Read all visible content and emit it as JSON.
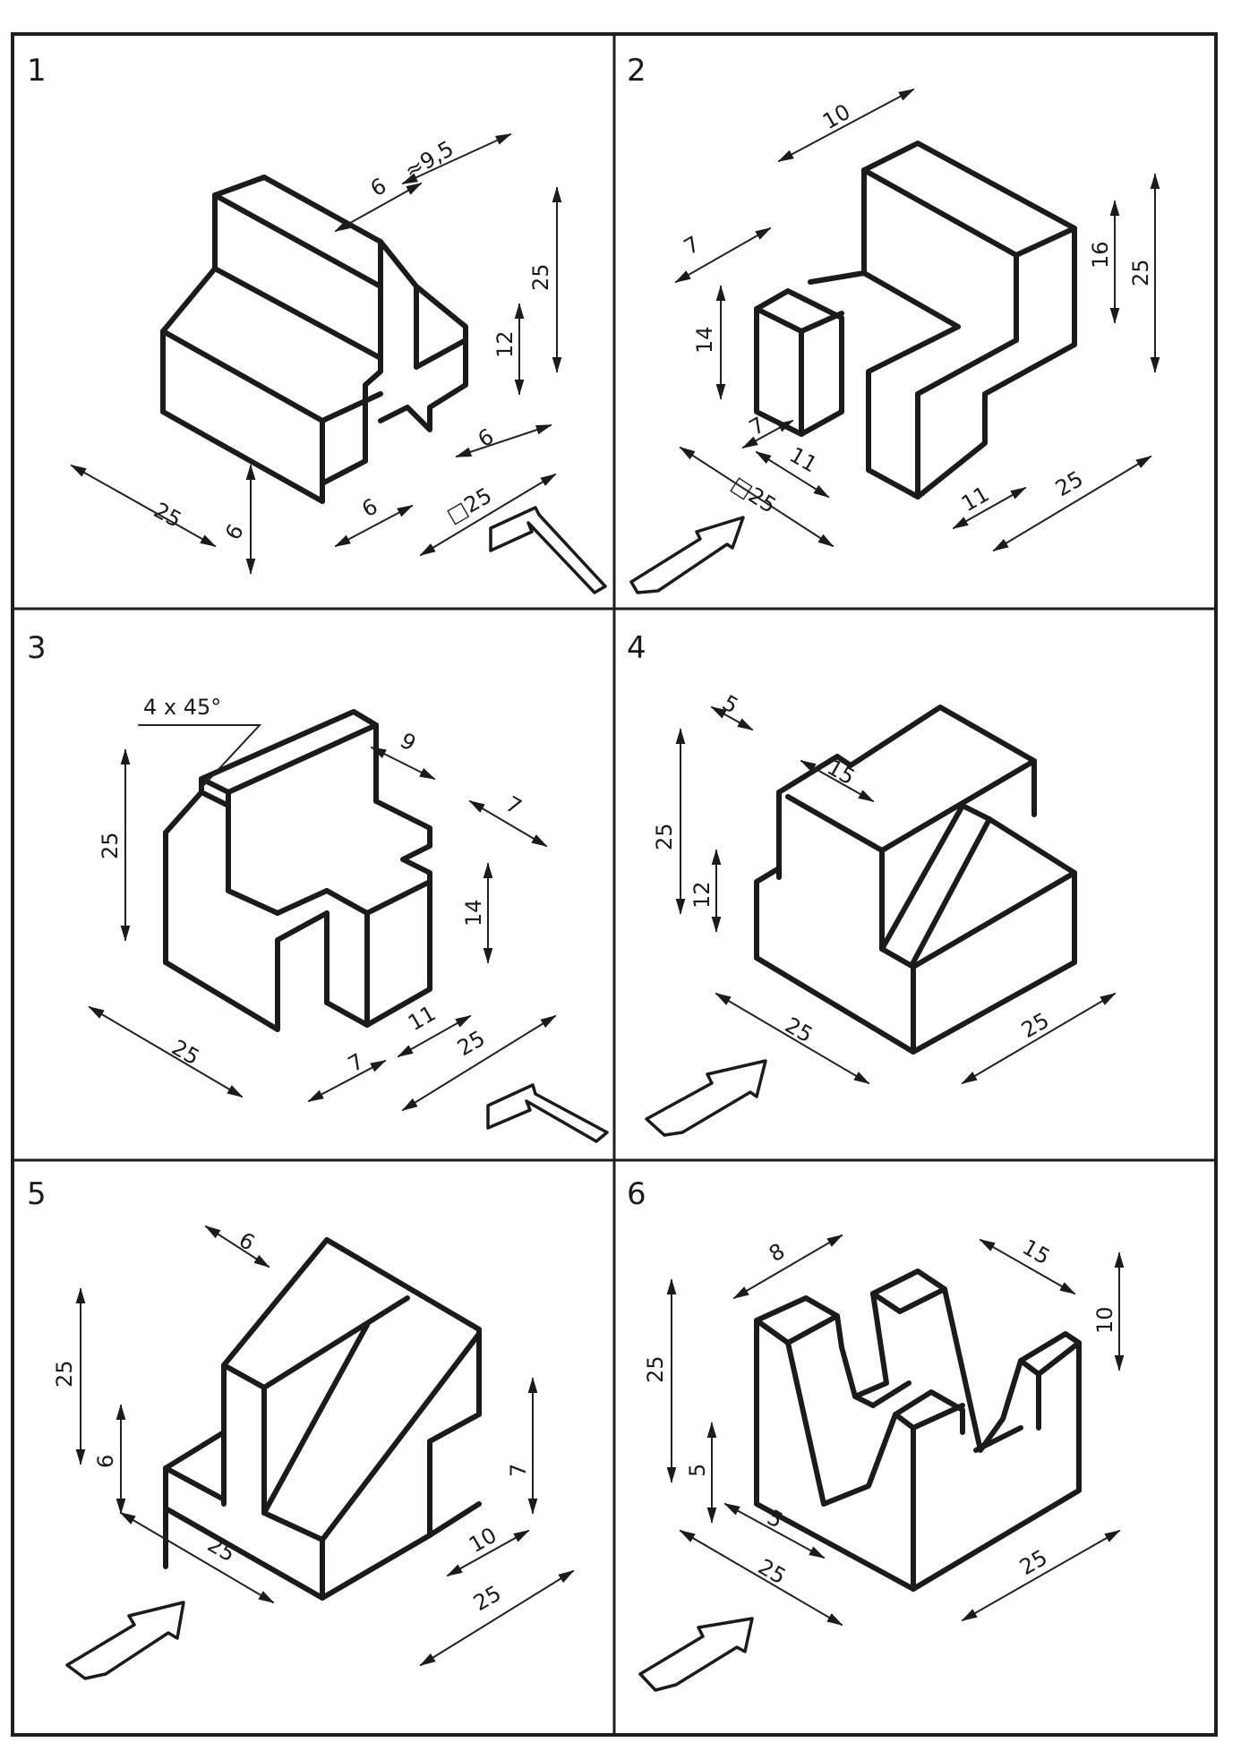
{
  "panels": [
    {
      "number": "1",
      "dims": {
        "a": "6",
        "b": "≈9,5",
        "c": "25",
        "d": "12",
        "e": "6",
        "f": "25",
        "g": "6",
        "h": "6",
        "i": "□25"
      }
    },
    {
      "number": "2",
      "dims": {
        "a": "10",
        "b": "7",
        "c": "14",
        "d": "16",
        "e": "25",
        "f": "7",
        "g": "11",
        "h": "□25",
        "i": "11",
        "j": "25"
      }
    },
    {
      "number": "3",
      "dims": {
        "a": "4 x 45°",
        "b": "9",
        "c": "7",
        "d": "25",
        "e": "14",
        "f": "25",
        "g": "7",
        "h": "11",
        "i": "25"
      }
    },
    {
      "number": "4",
      "dims": {
        "a": "5",
        "b": "15",
        "c": "25",
        "d": "12",
        "e": "25",
        "f": "25"
      }
    },
    {
      "number": "5",
      "dims": {
        "a": "6",
        "b": "25",
        "c": "6",
        "d": "7",
        "e": "25",
        "f": "10",
        "g": "25"
      }
    },
    {
      "number": "6",
      "dims": {
        "a": "8",
        "b": "15",
        "c": "10",
        "d": "25",
        "e": "5",
        "f": "5",
        "g": "25",
        "h": "25"
      }
    }
  ]
}
